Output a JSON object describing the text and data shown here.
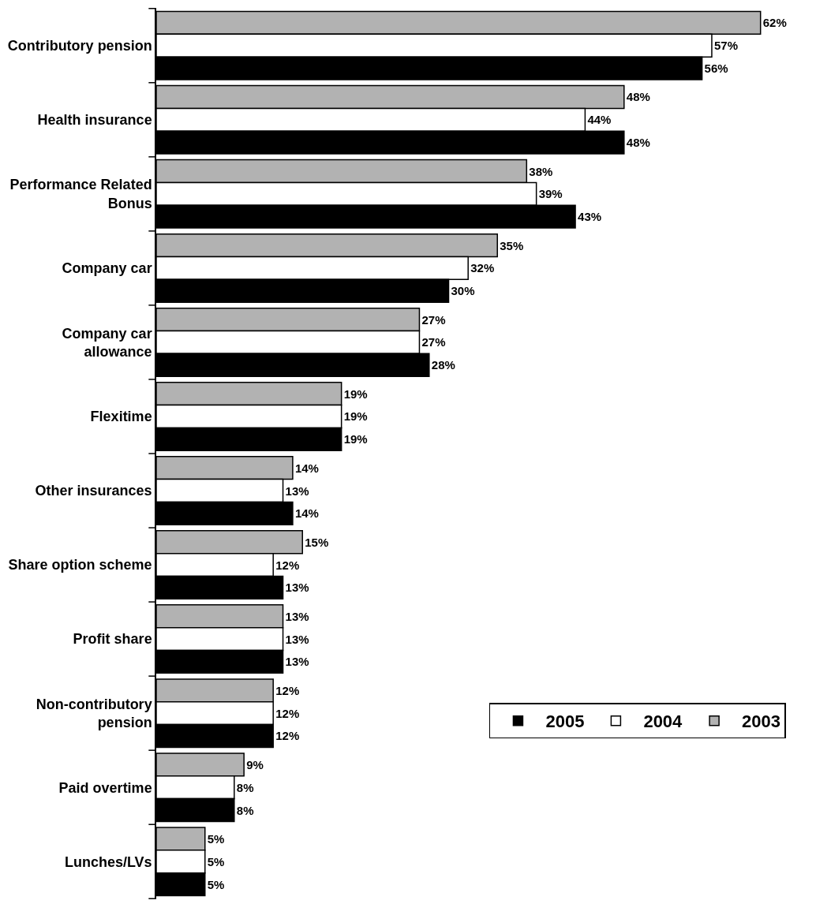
{
  "chart_data": {
    "type": "bar",
    "orientation": "horizontal",
    "categories": [
      "Contributory pension",
      "Health insurance",
      "Performance Related Bonus",
      "Company car",
      "Company car allowance",
      "Flexitime",
      "Other insurances",
      "Share option scheme",
      "Profit share",
      "Non-contributory pension",
      "Paid overtime",
      "Lunches/LVs"
    ],
    "series": [
      {
        "name": "2003",
        "color": "#b2b2b2",
        "values": [
          62,
          48,
          38,
          35,
          27,
          19,
          14,
          15,
          13,
          12,
          9,
          5
        ],
        "value_labels": [
          "62%",
          "48%",
          "38%",
          "35%",
          "27%",
          "19%",
          "14%",
          "15%",
          "13%",
          "12%",
          "9%",
          "5%"
        ]
      },
      {
        "name": "2004",
        "color": "#ffffff",
        "values": [
          57,
          44,
          39,
          32,
          27,
          19,
          13,
          12,
          13,
          12,
          8,
          5
        ],
        "value_labels": [
          "57%",
          "44%",
          "39%",
          "32%",
          "27%",
          "19%",
          "13%",
          "12%",
          "13%",
          "12%",
          "8%",
          "5%"
        ]
      },
      {
        "name": "2005",
        "color": "#000000",
        "values": [
          56,
          48,
          43,
          30,
          28,
          19,
          14,
          13,
          13,
          12,
          8,
          5
        ],
        "value_labels": [
          "56%",
          "48%",
          "43%",
          "30%",
          "28%",
          "19%",
          "14%",
          "13%",
          "13%",
          "12%",
          "8%",
          "5%"
        ]
      }
    ],
    "tick_labels": "y",
    "legend": "bottom right"
  }
}
